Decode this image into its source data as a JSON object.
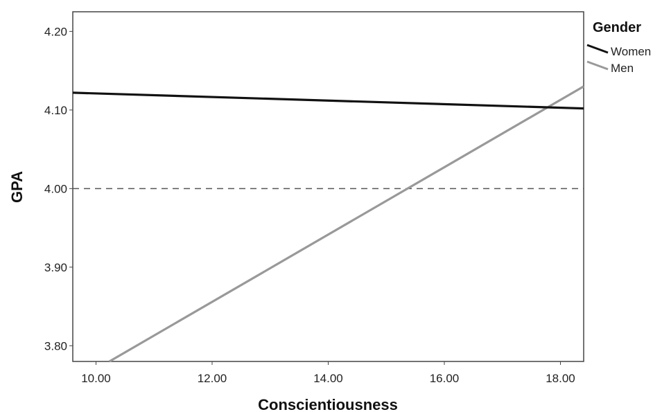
{
  "chart_data": {
    "type": "line",
    "xlabel": "Conscientiousness",
    "ylabel": "GPA",
    "xlim": [
      9.6,
      18.4
    ],
    "ylim": [
      3.78,
      4.225
    ],
    "x_ticks": [
      10,
      12,
      14,
      16,
      18
    ],
    "x_tick_labels": [
      "10.00",
      "12.00",
      "14.00",
      "16.00",
      "18.00"
    ],
    "y_ticks": [
      3.8,
      3.9,
      4.0,
      4.1,
      4.2
    ],
    "y_tick_labels": [
      "3.80",
      "3.90",
      "4.00",
      "4.10",
      "4.20"
    ],
    "grid": false,
    "reference_line": {
      "y": 4.0,
      "style": "dashed",
      "color": "#555555"
    },
    "legend": {
      "title": "Gender",
      "placement": "right-top, outside plot"
    },
    "series": [
      {
        "name": "Women",
        "color": "#111111",
        "x": [
          9.6,
          18.4
        ],
        "y": [
          4.122,
          4.102
        ]
      },
      {
        "name": "Men",
        "color": "#999999",
        "x": [
          10.23,
          18.4
        ],
        "y": [
          3.78,
          4.13
        ]
      }
    ]
  }
}
